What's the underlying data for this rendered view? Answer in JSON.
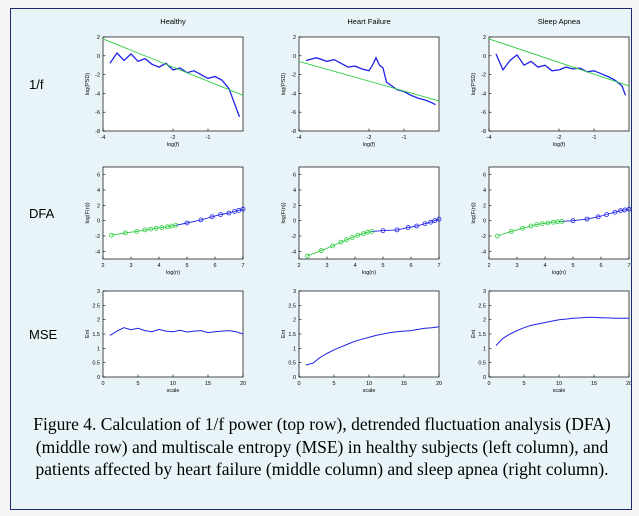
{
  "caption": "Figure 4.  Calculation of 1/f power (top row), detrended fluctuation analysis (DFA) (middle row) and multiscale entropy (MSE) in healthy subjects (left column), and patients affected by heart failure (middle column) and sleep apnea (right column).",
  "chart_data": {
    "type": "line",
    "columns": [
      "Healthy",
      "Heart Failure",
      "Sleep Apnea"
    ],
    "rows": [
      {
        "label": "1/f",
        "xlabel": "log(f)",
        "ylabel": "log(PSD)",
        "xlim": [
          -4,
          0
        ],
        "ylim": [
          -8,
          2
        ],
        "xticks": [
          "-4",
          "-2",
          "-1"
        ],
        "xtick_values": [
          -4,
          -2,
          -1
        ],
        "yticks": [
          "2",
          "0",
          "-2",
          "-4",
          "-6",
          "-8"
        ],
        "ytick_values": [
          2,
          0,
          -2,
          -4,
          -6,
          -8
        ],
        "panels": [
          {
            "spectrum": [
              [
                -3.8,
                -0.8
              ],
              [
                -3.6,
                0.3
              ],
              [
                -3.4,
                -0.5
              ],
              [
                -3.2,
                0.2
              ],
              [
                -3.0,
                -0.6
              ],
              [
                -2.8,
                -0.3
              ],
              [
                -2.6,
                -0.9
              ],
              [
                -2.4,
                -1.2
              ],
              [
                -2.2,
                -0.8
              ],
              [
                -2.0,
                -1.5
              ],
              [
                -1.8,
                -1.3
              ],
              [
                -1.6,
                -1.8
              ],
              [
                -1.4,
                -1.6
              ],
              [
                -1.2,
                -2.0
              ],
              [
                -1.0,
                -2.4
              ],
              [
                -0.8,
                -2.2
              ],
              [
                -0.6,
                -2.6
              ],
              [
                -0.4,
                -3.5
              ],
              [
                -0.2,
                -5.5
              ],
              [
                -0.1,
                -6.5
              ]
            ],
            "fit": [
              [
                -4,
                1.8
              ],
              [
                0,
                -4.2
              ]
            ]
          },
          {
            "spectrum": [
              [
                -3.8,
                -0.5
              ],
              [
                -3.5,
                -0.2
              ],
              [
                -3.2,
                -0.6
              ],
              [
                -3.0,
                -0.4
              ],
              [
                -2.8,
                -0.8
              ],
              [
                -2.6,
                -1.2
              ],
              [
                -2.4,
                -1.1
              ],
              [
                -2.2,
                -1.4
              ],
              [
                -2.0,
                -1.6
              ],
              [
                -1.9,
                -1.0
              ],
              [
                -1.8,
                -0.2
              ],
              [
                -1.7,
                -1.0
              ],
              [
                -1.6,
                -1.3
              ],
              [
                -1.5,
                -2.8
              ],
              [
                -1.2,
                -3.6
              ],
              [
                -1.0,
                -3.8
              ],
              [
                -0.8,
                -4.2
              ],
              [
                -0.6,
                -4.5
              ],
              [
                -0.4,
                -4.7
              ],
              [
                -0.2,
                -5.0
              ],
              [
                -0.1,
                -5.2
              ]
            ],
            "fit": [
              [
                -4,
                -0.6
              ],
              [
                0,
                -4.8
              ]
            ]
          },
          {
            "spectrum": [
              [
                -3.8,
                0.2
              ],
              [
                -3.6,
                -1.5
              ],
              [
                -3.4,
                -0.5
              ],
              [
                -3.2,
                0.1
              ],
              [
                -3.0,
                -1.0
              ],
              [
                -2.8,
                -0.6
              ],
              [
                -2.6,
                -1.2
              ],
              [
                -2.4,
                -1.0
              ],
              [
                -2.2,
                -1.6
              ],
              [
                -2.0,
                -1.5
              ],
              [
                -1.8,
                -1.2
              ],
              [
                -1.6,
                -1.4
              ],
              [
                -1.4,
                -1.3
              ],
              [
                -1.2,
                -1.7
              ],
              [
                -1.0,
                -1.6
              ],
              [
                -0.8,
                -1.9
              ],
              [
                -0.6,
                -2.2
              ],
              [
                -0.4,
                -2.6
              ],
              [
                -0.2,
                -3.2
              ],
              [
                -0.1,
                -4.2
              ]
            ],
            "fit": [
              [
                -4,
                1.8
              ],
              [
                0,
                -3.2
              ]
            ]
          }
        ]
      },
      {
        "label": "DFA",
        "xlabel": "log(n)",
        "ylabel": "log(F(n))",
        "xlim": [
          2,
          7
        ],
        "ylim": [
          -5,
          7
        ],
        "xticks": [
          "2",
          "3",
          "4",
          "5",
          "6",
          "7"
        ],
        "xtick_values": [
          2,
          3,
          4,
          5,
          6,
          7
        ],
        "yticks": [
          "6",
          "4",
          "2",
          "0",
          "-2",
          "-4"
        ],
        "ytick_values": [
          6,
          4,
          2,
          0,
          -2,
          -4
        ],
        "panels": [
          {
            "short_range": [
              [
                2.3,
                -1.9
              ],
              [
                2.8,
                -1.6
              ],
              [
                3.2,
                -1.4
              ],
              [
                3.5,
                -1.2
              ],
              [
                3.7,
                -1.1
              ],
              [
                3.9,
                -1.0
              ],
              [
                4.1,
                -0.9
              ],
              [
                4.3,
                -0.8
              ],
              [
                4.45,
                -0.7
              ],
              [
                4.6,
                -0.6
              ]
            ],
            "long_range": [
              [
                4.6,
                -0.6
              ],
              [
                5.0,
                -0.3
              ],
              [
                5.5,
                0.1
              ],
              [
                5.9,
                0.5
              ],
              [
                6.2,
                0.8
              ],
              [
                6.5,
                1.0
              ],
              [
                6.7,
                1.2
              ],
              [
                6.85,
                1.35
              ],
              [
                7.0,
                1.5
              ]
            ]
          },
          {
            "short_range": [
              [
                2.3,
                -4.6
              ],
              [
                2.8,
                -3.9
              ],
              [
                3.2,
                -3.3
              ],
              [
                3.5,
                -2.8
              ],
              [
                3.7,
                -2.5
              ],
              [
                3.9,
                -2.2
              ],
              [
                4.1,
                -1.9
              ],
              [
                4.3,
                -1.7
              ],
              [
                4.45,
                -1.5
              ],
              [
                4.6,
                -1.4
              ]
            ],
            "long_range": [
              [
                4.6,
                -1.4
              ],
              [
                5.0,
                -1.3
              ],
              [
                5.5,
                -1.2
              ],
              [
                5.9,
                -0.9
              ],
              [
                6.2,
                -0.7
              ],
              [
                6.5,
                -0.4
              ],
              [
                6.7,
                -0.2
              ],
              [
                6.85,
                0.0
              ],
              [
                7.0,
                0.2
              ]
            ]
          },
          {
            "short_range": [
              [
                2.3,
                -2.0
              ],
              [
                2.8,
                -1.4
              ],
              [
                3.2,
                -1.0
              ],
              [
                3.5,
                -0.7
              ],
              [
                3.7,
                -0.5
              ],
              [
                3.9,
                -0.4
              ],
              [
                4.1,
                -0.3
              ],
              [
                4.3,
                -0.2
              ],
              [
                4.45,
                -0.15
              ],
              [
                4.6,
                -0.1
              ]
            ],
            "long_range": [
              [
                4.6,
                -0.1
              ],
              [
                5.0,
                0.0
              ],
              [
                5.5,
                0.2
              ],
              [
                5.9,
                0.5
              ],
              [
                6.2,
                0.8
              ],
              [
                6.5,
                1.1
              ],
              [
                6.7,
                1.3
              ],
              [
                6.85,
                1.4
              ],
              [
                7.0,
                1.5
              ]
            ]
          }
        ]
      },
      {
        "label": "MSE",
        "xlabel": "scale",
        "ylabel": "Ent",
        "xlim": [
          0,
          20
        ],
        "ylim": [
          0,
          3
        ],
        "xticks": [
          "0",
          "5",
          "10",
          "15",
          "20"
        ],
        "xtick_values": [
          0,
          5,
          10,
          15,
          20
        ],
        "yticks": [
          "3",
          "2.5",
          "2",
          "1.5",
          "1",
          "0.5",
          "0"
        ],
        "ytick_values": [
          3,
          2.5,
          2,
          1.5,
          1,
          0.5,
          0
        ],
        "panels": [
          {
            "x": [
              1,
              2,
              3,
              4,
              5,
              6,
              7,
              8,
              9,
              10,
              11,
              12,
              13,
              14,
              15,
              16,
              17,
              18,
              19,
              20
            ],
            "y": [
              1.45,
              1.6,
              1.72,
              1.65,
              1.7,
              1.62,
              1.58,
              1.66,
              1.6,
              1.58,
              1.63,
              1.57,
              1.6,
              1.62,
              1.55,
              1.58,
              1.6,
              1.62,
              1.58,
              1.5
            ]
          },
          {
            "x": [
              1,
              2,
              3,
              4,
              5,
              6,
              7,
              8,
              9,
              10,
              11,
              12,
              13,
              14,
              15,
              16,
              17,
              18,
              19,
              20
            ],
            "y": [
              0.42,
              0.48,
              0.68,
              0.82,
              0.95,
              1.05,
              1.15,
              1.25,
              1.32,
              1.38,
              1.45,
              1.5,
              1.55,
              1.58,
              1.6,
              1.62,
              1.66,
              1.7,
              1.72,
              1.75
            ]
          },
          {
            "x": [
              1,
              2,
              3,
              4,
              5,
              6,
              7,
              8,
              9,
              10,
              11,
              12,
              13,
              14,
              15,
              16,
              17,
              18,
              19,
              20
            ],
            "y": [
              1.1,
              1.35,
              1.5,
              1.62,
              1.72,
              1.8,
              1.85,
              1.9,
              1.95,
              2.0,
              2.02,
              2.05,
              2.06,
              2.08,
              2.08,
              2.07,
              2.06,
              2.05,
              2.05,
              2.05
            ]
          }
        ]
      }
    ]
  }
}
